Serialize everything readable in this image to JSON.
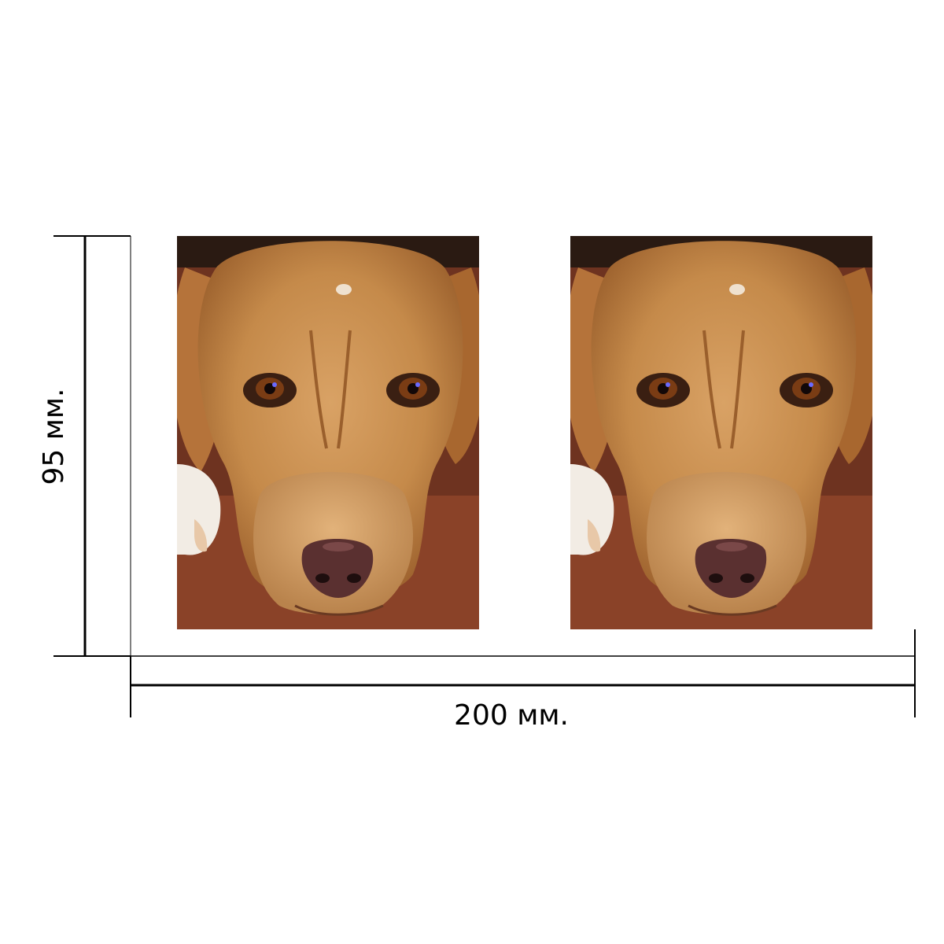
{
  "dimensions": {
    "height_label": "95 мм.",
    "width_label": "200 мм."
  },
  "images": [
    {
      "name": "dog-photo",
      "subject": "beagle-dog-face-photo"
    },
    {
      "name": "dog-photo",
      "subject": "beagle-dog-face-photo"
    }
  ],
  "colors": {
    "line": "#000000",
    "background": "#ffffff",
    "dog_fur": "#c58a4a",
    "carpet": "#7a3a22"
  }
}
